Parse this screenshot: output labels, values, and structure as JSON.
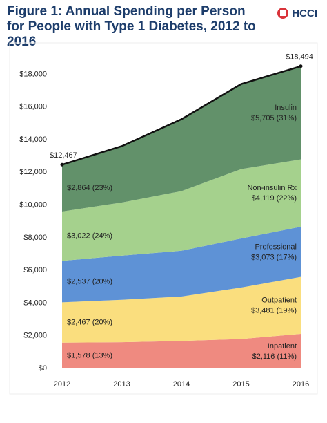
{
  "chart_data": {
    "type": "stacked_area",
    "title": "Figure 1: Annual Spending per Person for People with Type 1 Diabetes, 2012 to 2016",
    "logo": "HCCI",
    "categories": [
      "2012",
      "2013",
      "2014",
      "2015",
      "2016"
    ],
    "series": [
      {
        "name": "Inpatient",
        "color": "#ef8a80",
        "values": [
          1578,
          1600,
          1680,
          1800,
          2116
        ],
        "value_labels": [
          "$1,578 (13%)",
          null,
          null,
          null,
          "$2,116 (11%)"
        ]
      },
      {
        "name": "Outpatient",
        "color": "#fade7e",
        "values": [
          2467,
          2600,
          2720,
          3150,
          3481
        ],
        "value_labels": [
          "$2,467 (20%)",
          null,
          null,
          null,
          "$3,481 (19%)"
        ]
      },
      {
        "name": "Professional",
        "color": "#5e92d6",
        "values": [
          2537,
          2700,
          2800,
          3000,
          3073
        ],
        "value_labels": [
          "$2,537 (20%)",
          null,
          null,
          null,
          "$3,073 (17%)"
        ]
      },
      {
        "name": "Non-insulin Rx",
        "color": "#a5d18d",
        "values": [
          3022,
          3250,
          3650,
          4250,
          4119
        ],
        "value_labels": [
          "$3,022 (24%)",
          null,
          null,
          null,
          "$4,119 (22%)"
        ]
      },
      {
        "name": "Insulin",
        "color": "#62916a",
        "values": [
          2864,
          3450,
          4400,
          5200,
          5705
        ],
        "value_labels": [
          "$2,864 (23%)",
          null,
          null,
          null,
          "$5,705 (31%)"
        ]
      }
    ],
    "total": {
      "color": "#111111",
      "values": [
        12467,
        13600,
        15250,
        17400,
        18494
      ],
      "value_labels": [
        "$12,467",
        null,
        null,
        null,
        "$18,494"
      ]
    },
    "ylim": [
      0,
      19500
    ],
    "yticks": [
      {
        "value": 0,
        "label": "$0"
      },
      {
        "value": 2000,
        "label": "$2,000"
      },
      {
        "value": 4000,
        "label": "$4,000"
      },
      {
        "value": 6000,
        "label": "$6,000"
      },
      {
        "value": 8000,
        "label": "$8,000"
      },
      {
        "value": 10000,
        "label": "$10,000"
      },
      {
        "value": 12000,
        "label": "$12,000"
      },
      {
        "value": 14000,
        "label": "$14,000"
      },
      {
        "value": 16000,
        "label": "$16,000"
      },
      {
        "value": 18000,
        "label": "$18,000"
      }
    ]
  }
}
